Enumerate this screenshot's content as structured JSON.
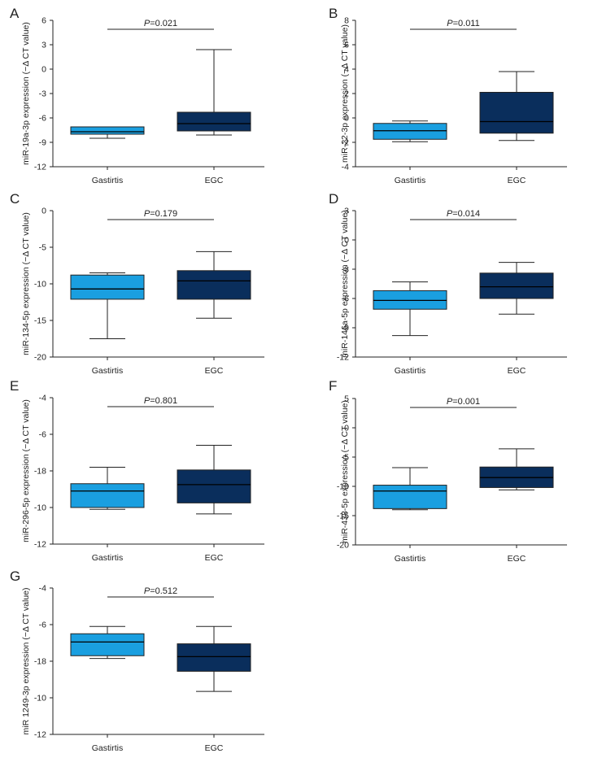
{
  "chart_data": [
    {
      "panel": "A",
      "type": "boxplot",
      "ylabel": "miR-19a-3p expression (−Δ CT value)",
      "ylim": [
        -12,
        6
      ],
      "ticks": [
        "6",
        "3",
        "0",
        "-3",
        "-6",
        "-9",
        "-12"
      ],
      "p_prefix": "P",
      "p_value": "=0.021",
      "categories": [
        "Gastirtis",
        "EGC"
      ],
      "boxes": [
        {
          "group": "Gastirtis",
          "min": -8.5,
          "q1": -8.0,
          "median": -7.7,
          "q3": -7.1,
          "max": -7.1,
          "color": "#1a9fe0"
        },
        {
          "group": "EGC",
          "min": -8.1,
          "q1": -7.6,
          "median": -6.7,
          "q3": -5.3,
          "max": 2.4,
          "color": "#0a2e5c"
        }
      ]
    },
    {
      "panel": "B",
      "type": "boxplot",
      "ylabel": "miR-22-3p expression (−Δ CT value)",
      "ylim": [
        -4,
        8
      ],
      "ticks": [
        "8",
        "6",
        "4",
        "2",
        "0",
        "-2",
        "-4"
      ],
      "p_prefix": "P",
      "p_value": "=0.011",
      "categories": [
        "Gastirtis",
        "EGC"
      ],
      "boxes": [
        {
          "group": "Gastirtis",
          "min": -1.95,
          "q1": -1.75,
          "median": -1.05,
          "q3": -0.45,
          "max": -0.25,
          "color": "#1a9fe0"
        },
        {
          "group": "EGC",
          "min": -1.85,
          "q1": -1.25,
          "median": -0.3,
          "q3": 2.1,
          "max": 3.8,
          "color": "#0a2e5c"
        }
      ]
    },
    {
      "panel": "C",
      "type": "boxplot",
      "ylabel": "miR-134-5p expression (−Δ CT value)",
      "ylim": [
        -20,
        0
      ],
      "ticks": [
        "0",
        "-5",
        "-10",
        "-15",
        "-20"
      ],
      "p_prefix": "P",
      "p_value": "=0.179",
      "categories": [
        "Gastirtis",
        "EGC"
      ],
      "boxes": [
        {
          "group": "Gastirtis",
          "min": -17.5,
          "q1": -12.1,
          "median": -10.7,
          "q3": -8.8,
          "max": -8.5,
          "color": "#1a9fe0"
        },
        {
          "group": "EGC",
          "min": -14.7,
          "q1": -12.1,
          "median": -9.6,
          "q3": -8.2,
          "max": -5.6,
          "color": "#0a2e5c"
        }
      ]
    },
    {
      "panel": "D",
      "type": "boxplot",
      "ylabel": "miR-146a-5p expression (−Δ CT value)",
      "ylim": [
        -12,
        3
      ],
      "ticks": [
        "3",
        "0",
        "-3",
        "-6",
        "-9",
        "-12"
      ],
      "p_prefix": "P",
      "p_value": "=0.014",
      "categories": [
        "Gastirtis",
        "EGC"
      ],
      "boxes": [
        {
          "group": "Gastirtis",
          "min": -9.8,
          "q1": -7.1,
          "median": -6.2,
          "q3": -5.2,
          "max": -4.3,
          "color": "#1a9fe0"
        },
        {
          "group": "EGC",
          "min": -7.6,
          "q1": -6.0,
          "median": -4.8,
          "q3": -3.4,
          "max": -2.3,
          "color": "#0a2e5c"
        }
      ]
    },
    {
      "panel": "E",
      "type": "boxplot",
      "ylabel": "miR-296-5p expression (−Δ CT value)",
      "ylim": [
        -12,
        -4
      ],
      "ticks": [
        "-4",
        "-6",
        "-18",
        "-10",
        "-12"
      ],
      "p_prefix": "P",
      "p_value": "=0.801",
      "categories": [
        "Gastirtis",
        "EGC"
      ],
      "boxes": [
        {
          "group": "Gastirtis",
          "min": -10.1,
          "q1": -10.0,
          "median": -9.1,
          "q3": -8.7,
          "max": -7.8,
          "color": "#1a9fe0"
        },
        {
          "group": "EGC",
          "min": -10.35,
          "q1": -9.75,
          "median": -8.75,
          "q3": -7.95,
          "max": -6.6,
          "color": "#0a2e5c"
        }
      ]
    },
    {
      "panel": "F",
      "type": "boxplot",
      "ylabel": "miR-438-5p expression (−Δ CT value)",
      "ylim": [
        -20,
        5
      ],
      "ticks": [
        "5",
        "0",
        "-5",
        "-10",
        "-15",
        "-20"
      ],
      "p_prefix": "P",
      "p_value": "=0.001",
      "categories": [
        "Gastirtis",
        "EGC"
      ],
      "boxes": [
        {
          "group": "Gastirtis",
          "min": -14.0,
          "q1": -13.8,
          "median": -10.8,
          "q3": -9.8,
          "max": -6.8,
          "color": "#1a9fe0"
        },
        {
          "group": "EGC",
          "min": -10.6,
          "q1": -10.2,
          "median": -8.5,
          "q3": -6.7,
          "max": -3.6,
          "color": "#0a2e5c"
        }
      ]
    },
    {
      "panel": "G",
      "type": "boxplot",
      "ylabel": "miR 1249-3p expression (−Δ CT value)",
      "ylim": [
        -12,
        -4
      ],
      "ticks": [
        "-4",
        "-6",
        "-18",
        "-10",
        "-12"
      ],
      "p_prefix": "P",
      "p_value": "=0.512",
      "categories": [
        "Gastirtis",
        "EGC"
      ],
      "boxes": [
        {
          "group": "Gastirtis",
          "min": -7.85,
          "q1": -7.7,
          "median": -6.95,
          "q3": -6.5,
          "max": -6.1,
          "color": "#1a9fe0"
        },
        {
          "group": "EGC",
          "min": -9.65,
          "q1": -8.55,
          "median": -7.75,
          "q3": -7.05,
          "max": -6.1,
          "color": "#0a2e5c"
        }
      ]
    }
  ]
}
